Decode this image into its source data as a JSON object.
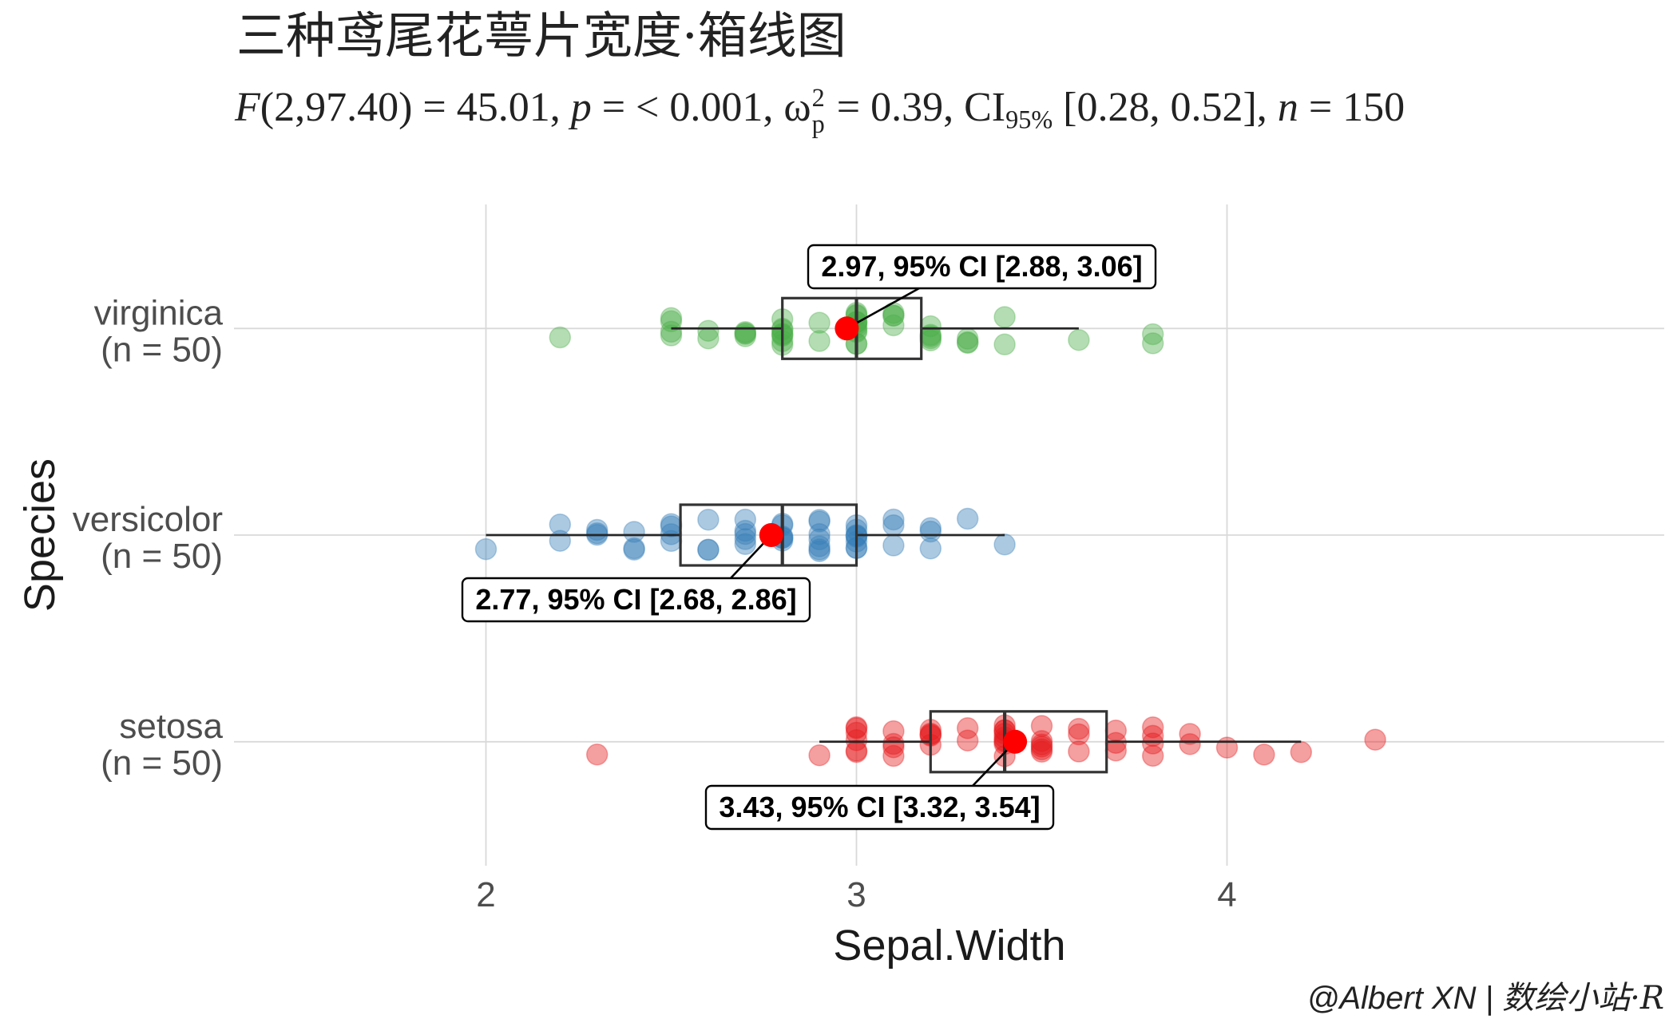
{
  "chart_data": {
    "type": "box",
    "title": "三种鸢尾花萼片宽度·箱线图",
    "subtitle": {
      "stat_symbol": "F",
      "stat_df": "(2,97.40)",
      "stat_value": " = 45.01, ",
      "p_symbol": "p",
      "p_value": " = < 0.001, ",
      "effect_symbol": "ω",
      "effect_sup": "2",
      "effect_sub": "p",
      "effect_value": " = 0.39, ",
      "ci_label": "CI",
      "ci_level": "95%",
      "ci_value": " [0.28, 0.52], ",
      "n_symbol": "n",
      "n_value": " = 150"
    },
    "xlabel": "Sepal.Width",
    "ylabel": "Species",
    "caption": {
      "handle": "@Albert XN | ",
      "site": "数绘小站·R"
    },
    "orientation": "horizontal",
    "xlim": [
      1.32,
      5.18
    ],
    "x_ticks": [
      2,
      3,
      4
    ],
    "grid": true,
    "mean_point_color": "#FF0000",
    "groups": [
      {
        "category": "virginica",
        "n_label": "(n = 50)",
        "color": "#4DAF4A",
        "values": [
          3.3,
          2.7,
          3.0,
          2.9,
          3.0,
          3.0,
          2.5,
          2.9,
          2.5,
          3.6,
          3.2,
          2.7,
          3.0,
          2.5,
          2.8,
          3.2,
          3.0,
          3.8,
          2.6,
          2.2,
          3.2,
          2.8,
          2.8,
          2.7,
          3.3,
          3.2,
          2.8,
          3.0,
          2.8,
          3.0,
          2.8,
          3.8,
          2.8,
          2.8,
          2.6,
          3.0,
          3.4,
          3.1,
          3.0,
          3.1,
          3.1,
          3.1,
          2.7,
          3.2,
          3.3,
          3.0,
          2.5,
          3.0,
          3.4,
          3.0
        ],
        "whisker_low": 2.5,
        "q1": 2.8,
        "median": 3.0,
        "q3": 3.175,
        "whisker_high": 3.6,
        "mean": 2.974,
        "mean_label": "2.97, 95% CI [2.88, 3.06]"
      },
      {
        "category": "versicolor",
        "n_label": "(n = 50)",
        "color": "#377EB8",
        "values": [
          3.2,
          3.2,
          3.1,
          2.3,
          2.8,
          2.8,
          3.3,
          2.4,
          2.9,
          2.7,
          2.0,
          3.0,
          2.2,
          2.9,
          2.9,
          3.1,
          3.0,
          2.7,
          2.2,
          2.5,
          3.2,
          2.8,
          2.5,
          2.8,
          2.9,
          3.0,
          2.8,
          3.0,
          2.9,
          2.6,
          2.4,
          2.4,
          2.7,
          2.7,
          3.0,
          3.4,
          3.1,
          2.3,
          3.0,
          2.5,
          2.6,
          3.0,
          2.6,
          2.3,
          2.7,
          3.0,
          2.9,
          2.9,
          2.5,
          2.8
        ],
        "whisker_low": 2.0,
        "q1": 2.525,
        "median": 2.8,
        "q3": 3.0,
        "whisker_high": 3.4,
        "mean": 2.77,
        "mean_label": "2.77, 95% CI [2.68, 2.86]"
      },
      {
        "category": "setosa",
        "n_label": "(n = 50)",
        "color": "#E41A1C",
        "values": [
          3.5,
          3.0,
          3.2,
          3.1,
          3.6,
          3.9,
          3.4,
          3.4,
          2.9,
          3.1,
          3.7,
          3.4,
          3.0,
          3.0,
          4.0,
          4.4,
          3.9,
          3.5,
          3.8,
          3.8,
          3.4,
          3.7,
          3.6,
          3.3,
          3.4,
          3.0,
          3.4,
          3.5,
          3.4,
          3.2,
          3.1,
          3.4,
          4.1,
          4.2,
          3.1,
          3.2,
          3.5,
          3.6,
          3.0,
          3.4,
          3.5,
          2.3,
          3.2,
          3.5,
          3.8,
          3.0,
          3.8,
          3.2,
          3.7,
          3.3
        ],
        "whisker_low": 2.9,
        "q1": 3.2,
        "median": 3.4,
        "q3": 3.675,
        "whisker_high": 4.2,
        "mean": 3.428,
        "mean_label": "3.43, 95% CI [3.32, 3.54]"
      }
    ]
  }
}
